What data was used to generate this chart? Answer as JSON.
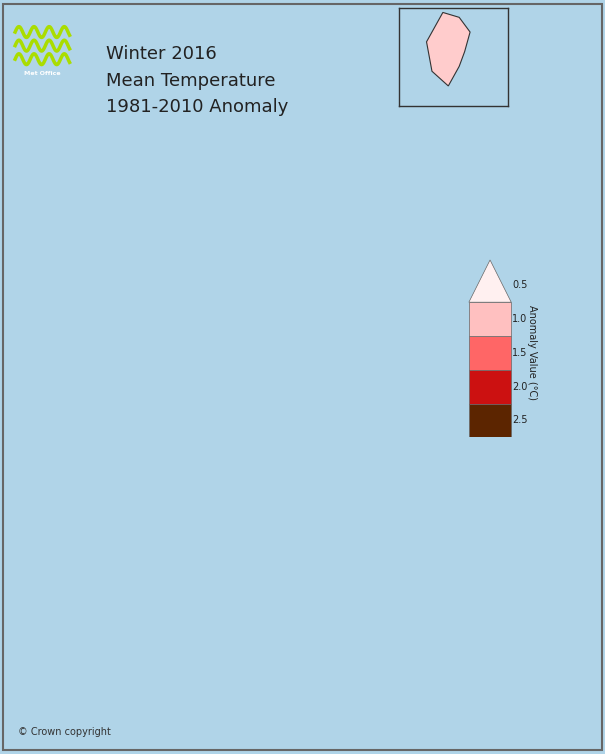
{
  "title_line1": "Winter 2016",
  "title_line2": "Mean Temperature",
  "title_line3": "1981-2010 Anomaly",
  "background_color": "#add8e6",
  "map_background": "#b0d4e8",
  "legend_levels": [
    "0.5",
    "1.0",
    "1.5",
    "2.0",
    "2.5"
  ],
  "legend_colors": [
    "#fff0f0",
    "#ffcccc",
    "#ff8888",
    "#cc0000",
    "#5c2800"
  ],
  "legend_label": "Anomaly Value (°C)",
  "copyright_text": "© Crown copyright",
  "border_color": "#333333",
  "outline_color": "#111111"
}
